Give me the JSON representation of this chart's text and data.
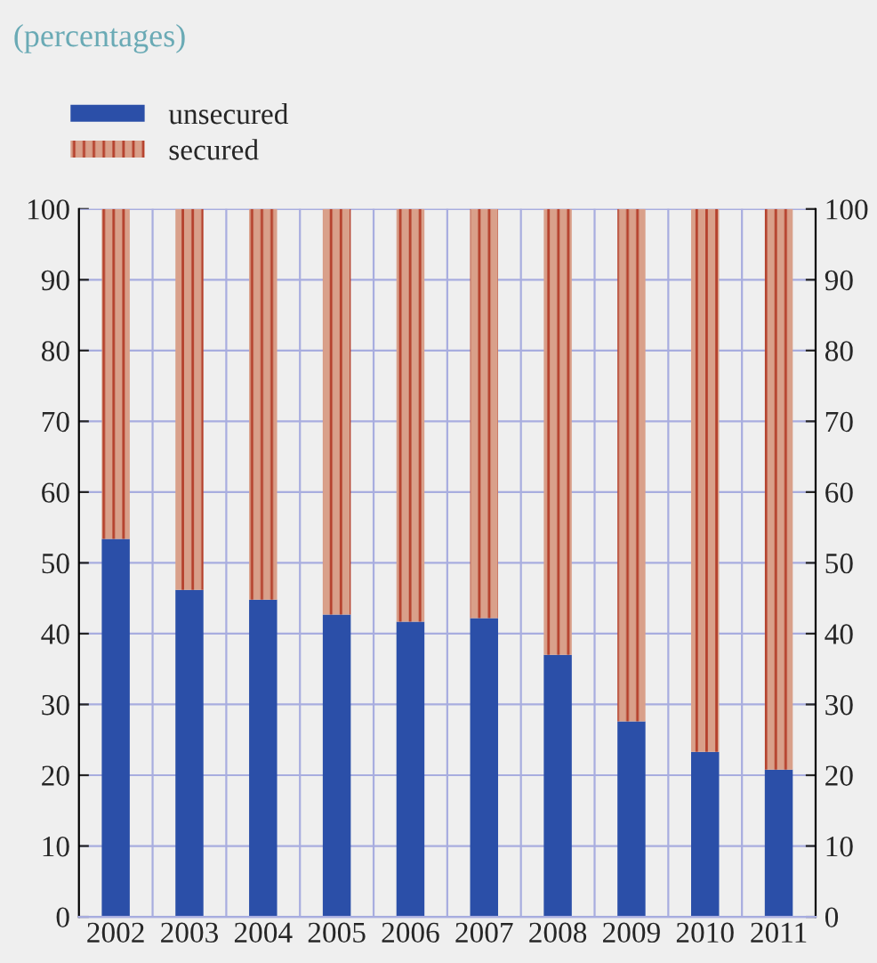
{
  "chart_data": {
    "type": "bar",
    "subtitle": "(percentages)",
    "stacked": true,
    "categories": [
      "2002",
      "2003",
      "2004",
      "2005",
      "2006",
      "2007",
      "2008",
      "2009",
      "2010",
      "2011"
    ],
    "series": [
      {
        "name": "unsecured",
        "color": "#2b4fa8",
        "values": [
          53.4,
          46.2,
          44.8,
          42.7,
          41.7,
          42.2,
          37.0,
          27.6,
          23.3,
          20.8
        ]
      },
      {
        "name": "secured",
        "color": "#d9a08a",
        "values": [
          46.6,
          53.8,
          55.2,
          57.3,
          58.3,
          57.8,
          63.0,
          72.4,
          76.7,
          79.2
        ]
      }
    ],
    "ylim": [
      0,
      100
    ],
    "yticks": [
      0,
      10,
      20,
      30,
      40,
      50,
      60,
      70,
      80,
      90,
      100
    ],
    "y2lim": [
      0,
      100
    ],
    "y2ticks": [
      0,
      10,
      20,
      30,
      40,
      50,
      60,
      70,
      80,
      90,
      100
    ],
    "grid": true,
    "legend": "top left"
  }
}
